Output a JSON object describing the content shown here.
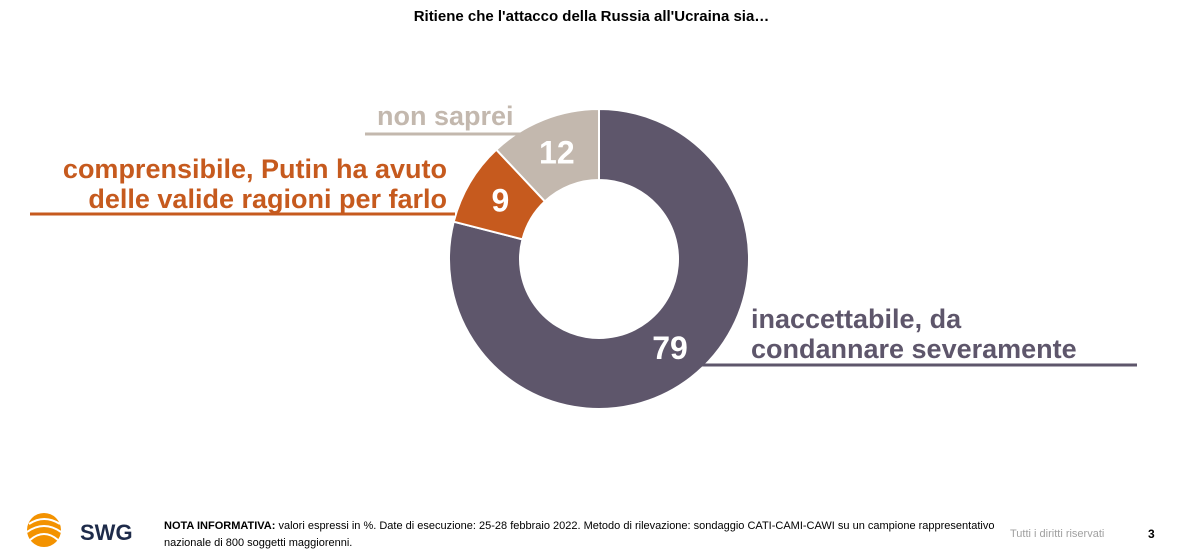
{
  "title": "Ritiene che l'attacco della Russia all'Ucraina sia…",
  "chart_data": {
    "type": "donut",
    "title": "Ritiene che l'attacco della Russia all'Ucraina sia…",
    "unit": "%",
    "categories": [
      "inaccettabile, da condannare severamente",
      "comprensibile, Putin ha avuto delle valide ragioni per farlo",
      "non saprei"
    ],
    "values": [
      79,
      9,
      12
    ],
    "colors": [
      "#5e566b",
      "#c65a1e",
      "#c3b8ae"
    ],
    "labels": {
      "non_saprei": "non saprei",
      "comprensibile_line1": "comprensibile, Putin ha avuto",
      "comprensibile_line2": "delle valide ragioni per farlo",
      "inaccettabile_line1": "inaccettabile, da",
      "inaccettabile_line2": "condannare severamente"
    }
  },
  "footer": {
    "logo_text": "SWG",
    "nota_label": "NOTA INFORMATIVA:",
    "nota_text": " valori espressi in %. Date di esecuzione: 25-28 febbraio 2022. Metodo di rilevazione: sondaggio CATI-CAMI-CAWI su un campione rappresentativo nazionale di 800 soggetti maggiorenni.",
    "rights": "Tutti i diritti riservati",
    "page_number": "3"
  }
}
